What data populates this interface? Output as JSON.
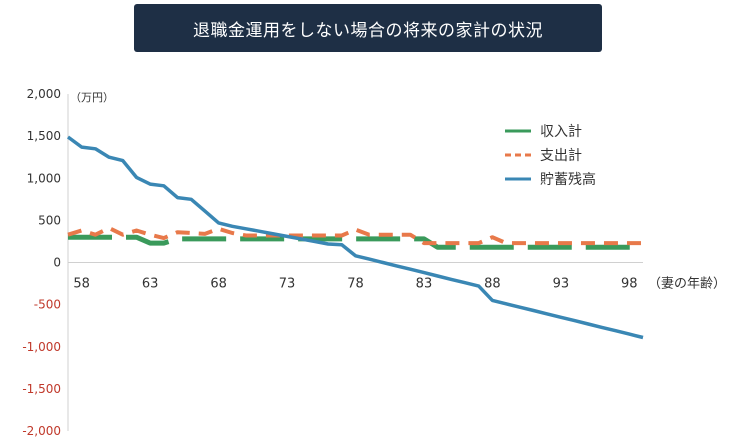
{
  "chart_data": {
    "type": "line",
    "title": "退職金運用をしない場合の将来の家計の状況",
    "y_unit": "（万円）",
    "x_unit": "（妻の年齢）",
    "ylim": [
      -2000,
      2000
    ],
    "y_ticks": [
      {
        "value": 2000,
        "label": "2,000"
      },
      {
        "value": 1500,
        "label": "1,500"
      },
      {
        "value": 1000,
        "label": "1,000"
      },
      {
        "value": 500,
        "label": "500"
      },
      {
        "value": 0,
        "label": "0"
      },
      {
        "value": -500,
        "label": "-500"
      },
      {
        "value": -1000,
        "label": "-1,000"
      },
      {
        "value": -1500,
        "label": "-1,500"
      },
      {
        "value": -2000,
        "label": "-2,000"
      }
    ],
    "x_ticks": [
      "58",
      "63",
      "68",
      "73",
      "78",
      "83",
      "88",
      "93",
      "98"
    ],
    "x": [
      57,
      58,
      59,
      60,
      61,
      62,
      63,
      64,
      65,
      66,
      67,
      68,
      69,
      70,
      71,
      72,
      73,
      74,
      75,
      76,
      77,
      78,
      79,
      80,
      81,
      82,
      83,
      84,
      85,
      86,
      87,
      88,
      89,
      90,
      91,
      92,
      93,
      94,
      95,
      96,
      97,
      98,
      99
    ],
    "grid": false,
    "legend_position": "top-right",
    "negative_label_color": "#c0392b",
    "series": [
      {
        "name": "収入計",
        "color": "#3a9a5b",
        "style": "dashed",
        "values": [
          300,
          300,
          300,
          300,
          300,
          300,
          230,
          230,
          280,
          280,
          280,
          280,
          280,
          280,
          280,
          280,
          280,
          280,
          280,
          280,
          280,
          280,
          280,
          280,
          280,
          280,
          280,
          180,
          180,
          180,
          180,
          180,
          180,
          180,
          180,
          180,
          180,
          180,
          180,
          180,
          180,
          180,
          180
        ]
      },
      {
        "name": "支出計",
        "color": "#e8794a",
        "style": "dashed",
        "values": [
          330,
          380,
          330,
          410,
          330,
          380,
          330,
          290,
          360,
          350,
          340,
          400,
          350,
          320,
          320,
          320,
          320,
          320,
          320,
          320,
          320,
          390,
          330,
          330,
          330,
          330,
          230,
          230,
          230,
          230,
          230,
          300,
          230,
          230,
          230,
          230,
          230,
          230,
          230,
          230,
          230,
          230,
          230
        ]
      },
      {
        "name": "貯蓄残高",
        "color": "#3a87b4",
        "style": "solid",
        "values": [
          1490,
          1370,
          1350,
          1250,
          1210,
          1010,
          930,
          910,
          770,
          750,
          610,
          470,
          430,
          400,
          370,
          340,
          310,
          280,
          250,
          220,
          210,
          80,
          40,
          0,
          -40,
          -80,
          -120,
          -160,
          -200,
          -240,
          -280,
          -450,
          -490,
          -530,
          -570,
          -610,
          -650,
          -690,
          -730,
          -770,
          -810,
          -850,
          -890
        ]
      }
    ]
  }
}
